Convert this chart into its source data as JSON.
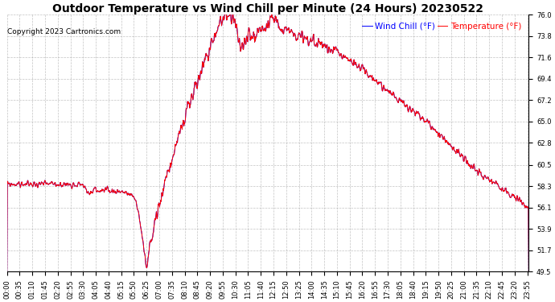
{
  "title": "Outdoor Temperature vs Wind Chill per Minute (24 Hours) 20230522",
  "copyright": "Copyright 2023 Cartronics.com",
  "legend_windchill": "Wind Chill (°F)",
  "legend_temp": "Temperature (°F)",
  "windchill_color": "blue",
  "temp_color": "red",
  "ylabel_right_ticks": [
    49.5,
    51.7,
    53.9,
    56.1,
    58.3,
    60.5,
    62.8,
    65.0,
    67.2,
    69.4,
    71.6,
    73.8,
    76.0
  ],
  "ylim": [
    49.5,
    76.0
  ],
  "background_color": "#ffffff",
  "plot_bg_color": "#ffffff",
  "grid_color": "#aaaaaa",
  "title_fontsize": 10,
  "copyright_fontsize": 6.5,
  "legend_fontsize": 7.5,
  "tick_fontsize": 6,
  "tick_step_minutes": 35
}
